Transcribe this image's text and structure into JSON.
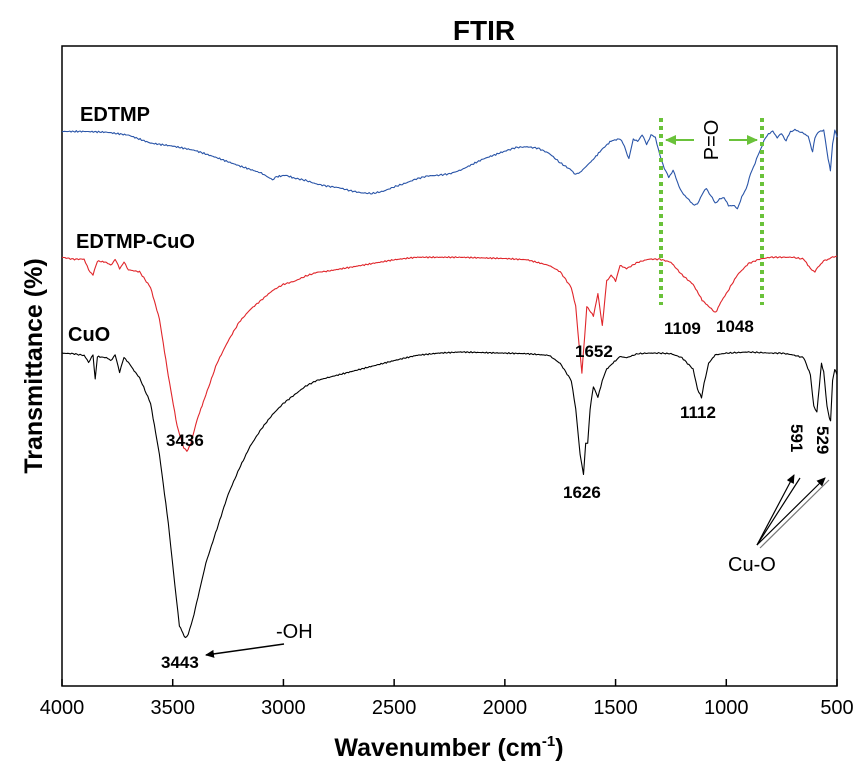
{
  "chart_data": {
    "type": "line",
    "title": "FTIR",
    "xlabel": "Wavenumber",
    "xlabel_unit_base": "(cm",
    "xlabel_unit_exp": "-1",
    "xlabel_unit_close": ")",
    "ylabel": "Transmittance (%)",
    "xlim": [
      4000,
      500
    ],
    "x_reversed": true,
    "y_ticks_shown": false,
    "grid": false,
    "x_ticks": [
      "4000",
      "3500",
      "3000",
      "2500",
      "2000",
      "1500",
      "1000",
      "500"
    ],
    "x_tick_values": [
      4000,
      3500,
      3000,
      2500,
      2000,
      1500,
      1000,
      500
    ],
    "series": [
      {
        "name": "EDTMP",
        "color": "#2a55a8",
        "points": [
          [
            4000,
            0.02
          ],
          [
            3900,
            0.02
          ],
          [
            3800,
            0.03
          ],
          [
            3700,
            0.07
          ],
          [
            3600,
            0.18
          ],
          [
            3500,
            0.22
          ],
          [
            3400,
            0.28
          ],
          [
            3300,
            0.38
          ],
          [
            3200,
            0.49
          ],
          [
            3100,
            0.59
          ],
          [
            3050,
            0.68
          ],
          [
            3030,
            0.64
          ],
          [
            2990,
            0.62
          ],
          [
            2950,
            0.66
          ],
          [
            2900,
            0.69
          ],
          [
            2850,
            0.74
          ],
          [
            2800,
            0.77
          ],
          [
            2750,
            0.79
          ],
          [
            2700,
            0.83
          ],
          [
            2650,
            0.86
          ],
          [
            2600,
            0.87
          ],
          [
            2550,
            0.84
          ],
          [
            2500,
            0.78
          ],
          [
            2450,
            0.73
          ],
          [
            2400,
            0.67
          ],
          [
            2350,
            0.63
          ],
          [
            2300,
            0.62
          ],
          [
            2250,
            0.6
          ],
          [
            2200,
            0.55
          ],
          [
            2100,
            0.4
          ],
          [
            2000,
            0.29
          ],
          [
            1950,
            0.24
          ],
          [
            1900,
            0.23
          ],
          [
            1850,
            0.25
          ],
          [
            1800,
            0.32
          ],
          [
            1750,
            0.45
          ],
          [
            1700,
            0.55
          ],
          [
            1680,
            0.61
          ],
          [
            1660,
            0.58
          ],
          [
            1600,
            0.4
          ],
          [
            1560,
            0.26
          ],
          [
            1520,
            0.15
          ],
          [
            1480,
            0.12
          ],
          [
            1460,
            0.22
          ],
          [
            1440,
            0.4
          ],
          [
            1420,
            0.12
          ],
          [
            1400,
            0.16
          ],
          [
            1380,
            0.06
          ],
          [
            1360,
            0.2
          ],
          [
            1340,
            0.07
          ],
          [
            1320,
            0.1
          ],
          [
            1300,
            0.35
          ],
          [
            1280,
            0.52
          ],
          [
            1260,
            0.65
          ],
          [
            1240,
            0.55
          ],
          [
            1220,
            0.72
          ],
          [
            1200,
            0.86
          ],
          [
            1180,
            0.92
          ],
          [
            1150,
            1.02
          ],
          [
            1130,
            1.02
          ],
          [
            1110,
            0.88
          ],
          [
            1090,
            0.8
          ],
          [
            1070,
            0.9
          ],
          [
            1050,
            1.0
          ],
          [
            1030,
            0.95
          ],
          [
            1010,
            0.92
          ],
          [
            990,
            1.04
          ],
          [
            970,
            1.03
          ],
          [
            950,
            1.08
          ],
          [
            930,
            0.92
          ],
          [
            910,
            0.8
          ],
          [
            890,
            0.6
          ],
          [
            870,
            0.45
          ],
          [
            850,
            0.3
          ],
          [
            830,
            0.15
          ],
          [
            810,
            0.05
          ],
          [
            790,
            0.02
          ],
          [
            770,
            0.1
          ],
          [
            750,
            0.05
          ],
          [
            730,
            0.15
          ],
          [
            710,
            0.02
          ],
          [
            690,
            0.0
          ],
          [
            670,
            0.02
          ],
          [
            650,
            0.05
          ],
          [
            630,
            0.08
          ],
          [
            620,
            0.2
          ],
          [
            610,
            0.3
          ],
          [
            600,
            0.1
          ],
          [
            580,
            0.02
          ],
          [
            560,
            0.0
          ],
          [
            540,
            0.4
          ],
          [
            530,
            0.55
          ],
          [
            520,
            0.2
          ],
          [
            510,
            0.0
          ],
          [
            500,
            0.1
          ]
        ]
      },
      {
        "name": "EDTMP-CuO",
        "color": "#e0262b",
        "points": [
          [
            4000,
            0.02
          ],
          [
            3950,
            0.05
          ],
          [
            3900,
            0.05
          ],
          [
            3880,
            0.22
          ],
          [
            3860,
            0.3
          ],
          [
            3840,
            0.08
          ],
          [
            3800,
            0.1
          ],
          [
            3780,
            0.15
          ],
          [
            3760,
            0.05
          ],
          [
            3740,
            0.2
          ],
          [
            3720,
            0.1
          ],
          [
            3700,
            0.22
          ],
          [
            3650,
            0.25
          ],
          [
            3600,
            0.5
          ],
          [
            3560,
            1.0
          ],
          [
            3520,
            1.9
          ],
          [
            3480,
            2.7
          ],
          [
            3450,
            3.05
          ],
          [
            3436,
            3.1
          ],
          [
            3420,
            3.0
          ],
          [
            3390,
            2.6
          ],
          [
            3350,
            2.2
          ],
          [
            3300,
            1.7
          ],
          [
            3250,
            1.35
          ],
          [
            3200,
            1.05
          ],
          [
            3150,
            0.85
          ],
          [
            3100,
            0.7
          ],
          [
            3050,
            0.55
          ],
          [
            3000,
            0.45
          ],
          [
            2950,
            0.4
          ],
          [
            2900,
            0.32
          ],
          [
            2850,
            0.26
          ],
          [
            2800,
            0.24
          ],
          [
            2700,
            0.18
          ],
          [
            2600,
            0.12
          ],
          [
            2500,
            0.06
          ],
          [
            2400,
            0.02
          ],
          [
            2300,
            0.02
          ],
          [
            2200,
            0.02
          ],
          [
            2100,
            0.03
          ],
          [
            2000,
            0.04
          ],
          [
            1900,
            0.06
          ],
          [
            1800,
            0.15
          ],
          [
            1750,
            0.25
          ],
          [
            1700,
            0.5
          ],
          [
            1680,
            0.8
          ],
          [
            1665,
            1.4
          ],
          [
            1652,
            1.85
          ],
          [
            1640,
            1.3
          ],
          [
            1630,
            0.8
          ],
          [
            1600,
            0.95
          ],
          [
            1580,
            0.6
          ],
          [
            1560,
            1.1
          ],
          [
            1540,
            0.4
          ],
          [
            1520,
            0.3
          ],
          [
            1500,
            0.4
          ],
          [
            1480,
            0.15
          ],
          [
            1450,
            0.2
          ],
          [
            1400,
            0.1
          ],
          [
            1350,
            0.05
          ],
          [
            1300,
            0.05
          ],
          [
            1250,
            0.1
          ],
          [
            1200,
            0.3
          ],
          [
            1150,
            0.45
          ],
          [
            1109,
            0.7
          ],
          [
            1080,
            0.8
          ],
          [
            1048,
            0.9
          ],
          [
            1020,
            0.7
          ],
          [
            1000,
            0.6
          ],
          [
            950,
            0.3
          ],
          [
            900,
            0.12
          ],
          [
            850,
            0.05
          ],
          [
            800,
            0.02
          ],
          [
            750,
            0.02
          ],
          [
            700,
            0.02
          ],
          [
            650,
            0.05
          ],
          [
            620,
            0.2
          ],
          [
            600,
            0.25
          ],
          [
            580,
            0.15
          ],
          [
            560,
            0.08
          ],
          [
            540,
            0.05
          ],
          [
            520,
            0.02
          ],
          [
            500,
            0.0
          ]
        ]
      },
      {
        "name": "CuO",
        "color": "#000000",
        "points": [
          [
            4000,
            0.02
          ],
          [
            3950,
            0.03
          ],
          [
            3900,
            0.06
          ],
          [
            3880,
            0.18
          ],
          [
            3860,
            0.05
          ],
          [
            3850,
            0.48
          ],
          [
            3840,
            0.08
          ],
          [
            3800,
            0.1
          ],
          [
            3780,
            0.15
          ],
          [
            3760,
            0.05
          ],
          [
            3740,
            0.35
          ],
          [
            3720,
            0.1
          ],
          [
            3700,
            0.18
          ],
          [
            3680,
            0.3
          ],
          [
            3650,
            0.45
          ],
          [
            3600,
            0.9
          ],
          [
            3560,
            1.8
          ],
          [
            3520,
            3.0
          ],
          [
            3490,
            4.1
          ],
          [
            3470,
            4.8
          ],
          [
            3443,
            5.02
          ],
          [
            3430,
            4.95
          ],
          [
            3410,
            4.7
          ],
          [
            3380,
            4.2
          ],
          [
            3350,
            3.7
          ],
          [
            3300,
            3.1
          ],
          [
            3250,
            2.5
          ],
          [
            3200,
            2.05
          ],
          [
            3150,
            1.65
          ],
          [
            3100,
            1.35
          ],
          [
            3050,
            1.1
          ],
          [
            3000,
            0.9
          ],
          [
            2950,
            0.75
          ],
          [
            2900,
            0.6
          ],
          [
            2850,
            0.5
          ],
          [
            2800,
            0.45
          ],
          [
            2700,
            0.35
          ],
          [
            2600,
            0.25
          ],
          [
            2500,
            0.15
          ],
          [
            2400,
            0.06
          ],
          [
            2300,
            0.02
          ],
          [
            2200,
            0.0
          ],
          [
            2100,
            0.01
          ],
          [
            2000,
            0.02
          ],
          [
            1900,
            0.03
          ],
          [
            1800,
            0.06
          ],
          [
            1750,
            0.2
          ],
          [
            1700,
            0.5
          ],
          [
            1680,
            1.0
          ],
          [
            1660,
            1.8
          ],
          [
            1645,
            2.15
          ],
          [
            1635,
            1.6
          ],
          [
            1626,
            1.6
          ],
          [
            1615,
            1.0
          ],
          [
            1600,
            0.6
          ],
          [
            1580,
            0.8
          ],
          [
            1560,
            0.5
          ],
          [
            1540,
            0.3
          ],
          [
            1500,
            0.15
          ],
          [
            1480,
            0.08
          ],
          [
            1450,
            0.1
          ],
          [
            1400,
            0.03
          ],
          [
            1350,
            0.02
          ],
          [
            1300,
            0.02
          ],
          [
            1250,
            0.03
          ],
          [
            1200,
            0.1
          ],
          [
            1150,
            0.3
          ],
          [
            1130,
            0.65
          ],
          [
            1112,
            0.8
          ],
          [
            1100,
            0.55
          ],
          [
            1080,
            0.2
          ],
          [
            1050,
            0.05
          ],
          [
            1000,
            0.02
          ],
          [
            950,
            0.01
          ],
          [
            900,
            0.0
          ],
          [
            850,
            0.01
          ],
          [
            800,
            0.02
          ],
          [
            750,
            0.02
          ],
          [
            700,
            0.05
          ],
          [
            650,
            0.1
          ],
          [
            620,
            0.4
          ],
          [
            605,
            0.95
          ],
          [
            591,
            1.05
          ],
          [
            580,
            0.6
          ],
          [
            570,
            0.2
          ],
          [
            560,
            0.35
          ],
          [
            545,
            0.95
          ],
          [
            535,
            1.15
          ],
          [
            529,
            1.2
          ],
          [
            520,
            0.5
          ],
          [
            510,
            0.3
          ],
          [
            500,
            0.4
          ]
        ]
      }
    ],
    "peak_labels": [
      {
        "text": "1652",
        "x": 1652,
        "series": "EDTMP-CuO"
      },
      {
        "text": "1109",
        "x": 1109,
        "series": "EDTMP-CuO"
      },
      {
        "text": "1048",
        "x": 1048,
        "series": "EDTMP-CuO"
      },
      {
        "text": "3436",
        "x": 3436,
        "series": "EDTMP-CuO"
      },
      {
        "text": "1626",
        "x": 1626,
        "series": "CuO"
      },
      {
        "text": "1112",
        "x": 1112,
        "series": "CuO"
      },
      {
        "text": "3443",
        "x": 3443,
        "series": "CuO"
      },
      {
        "text": "591",
        "x": 591,
        "series": "CuO"
      },
      {
        "text": "529",
        "x": 529,
        "series": "CuO"
      }
    ],
    "annotations": {
      "po_label": "P=O",
      "po_bracket_x": [
        1300,
        850
      ],
      "po_color": "#6ac23a",
      "oh_label": "-OH",
      "cuo_label": "Cu-O"
    }
  }
}
